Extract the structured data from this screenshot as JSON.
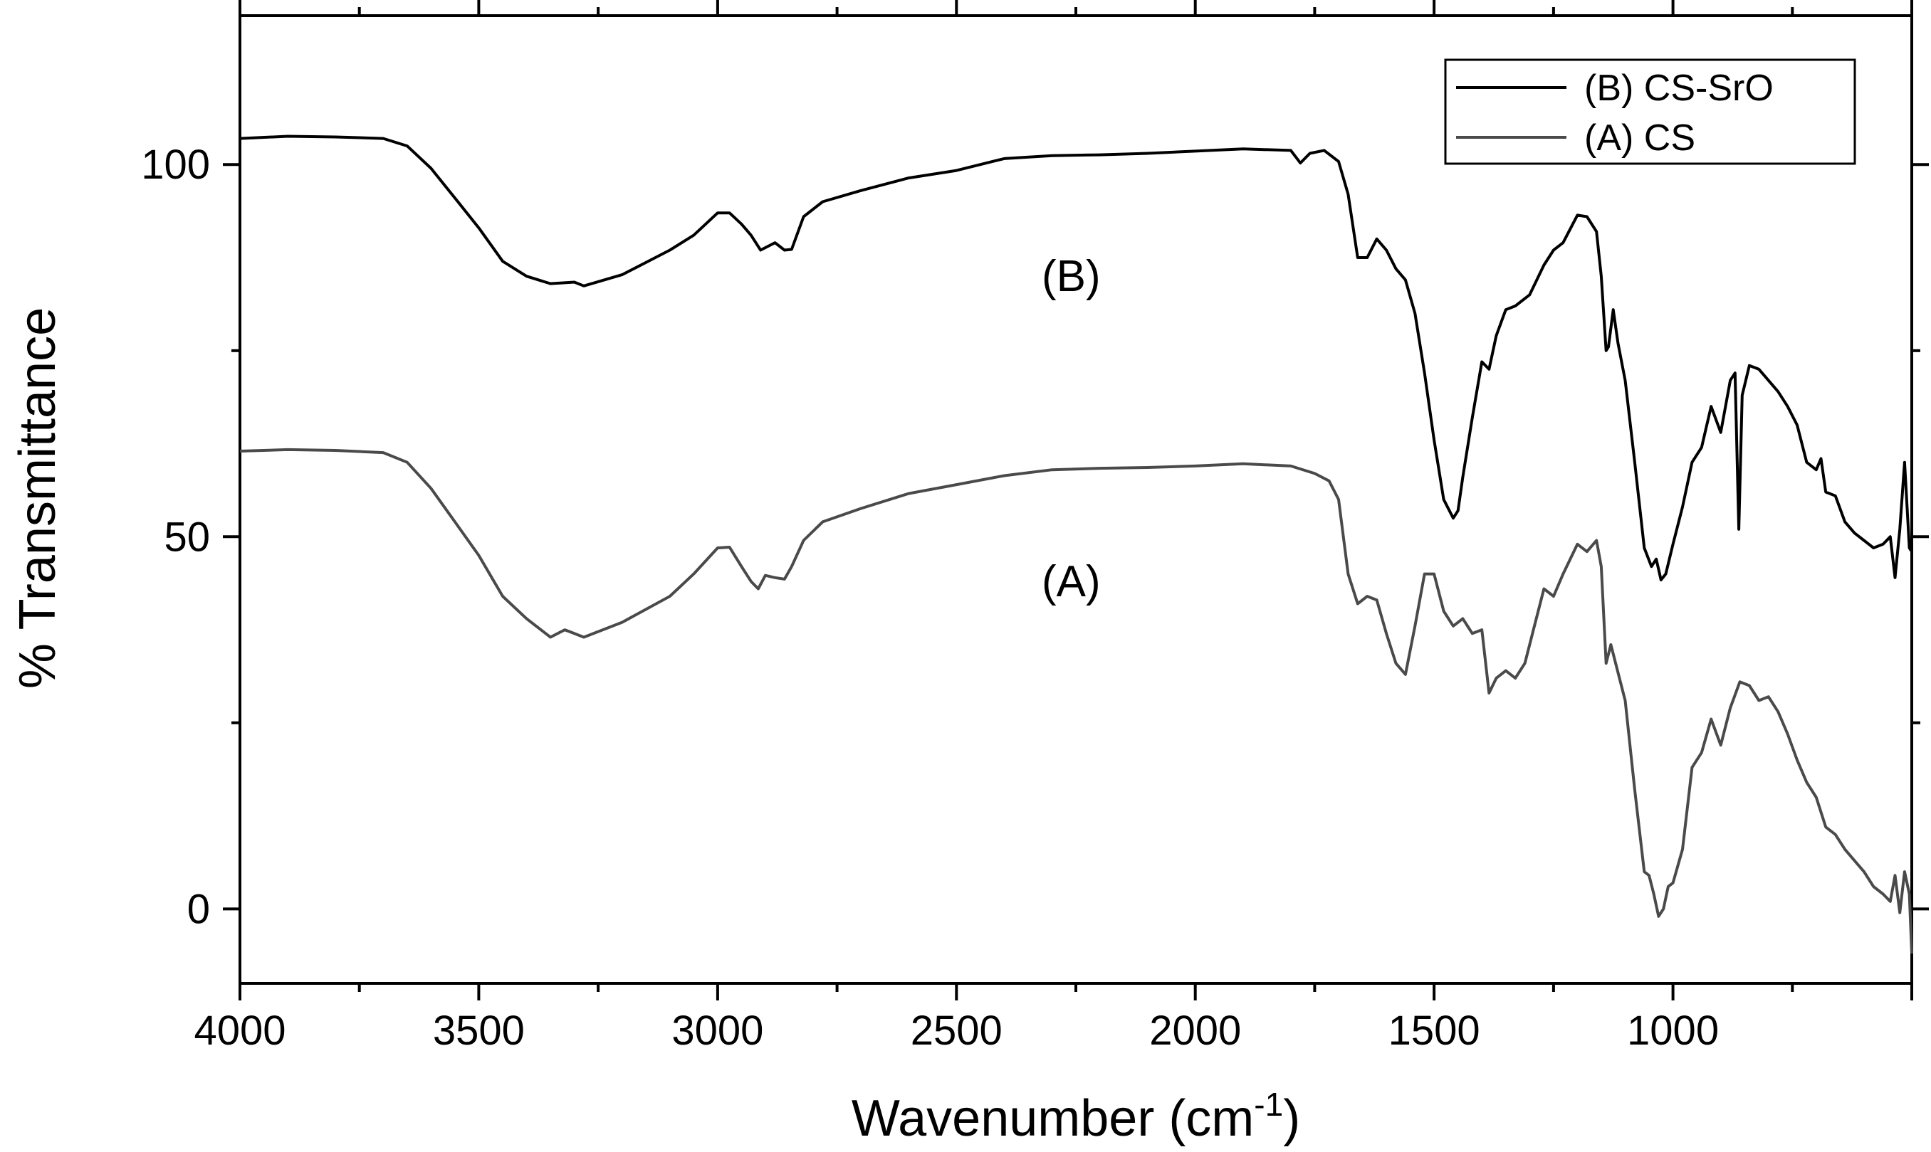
{
  "chart_data": {
    "type": "line",
    "title": "",
    "xlabel": "Wavenumber (cm",
    "xlabel_sup": "-1",
    "xlabel_close": ")",
    "ylabel": "% Transmittance",
    "xlim": [
      4000,
      500
    ],
    "ylim": [
      -10,
      120
    ],
    "x_reversed": true,
    "grid": false,
    "legend_position": "top-right",
    "x_ticks": [
      4000,
      3500,
      3000,
      2500,
      2000,
      1500,
      1000
    ],
    "x_tick_labels": [
      "4000",
      "3500",
      "3000",
      "2500",
      "2000",
      "1500",
      "1000"
    ],
    "y_ticks": [
      0,
      50,
      100
    ],
    "y_tick_labels": [
      "0",
      "50",
      "100"
    ],
    "annotations": [
      {
        "text": "(B)",
        "x": 2260,
        "y": 83
      },
      {
        "text": "(A)",
        "x": 2260,
        "y": 42
      }
    ],
    "series": [
      {
        "name": "(B) CS-SrO",
        "color": "#000000",
        "x": [
          4000,
          3900,
          3800,
          3700,
          3650,
          3600,
          3550,
          3500,
          3450,
          3400,
          3350,
          3300,
          3280,
          3200,
          3100,
          3050,
          3000,
          2975,
          2950,
          2930,
          2910,
          2880,
          2860,
          2845,
          2820,
          2780,
          2700,
          2600,
          2500,
          2400,
          2300,
          2200,
          2100,
          2000,
          1900,
          1800,
          1780,
          1760,
          1730,
          1700,
          1680,
          1660,
          1640,
          1620,
          1600,
          1580,
          1560,
          1540,
          1520,
          1500,
          1480,
          1460,
          1450,
          1440,
          1420,
          1400,
          1385,
          1370,
          1350,
          1330,
          1300,
          1270,
          1250,
          1230,
          1200,
          1180,
          1160,
          1150,
          1140,
          1135,
          1125,
          1115,
          1100,
          1080,
          1060,
          1045,
          1035,
          1025,
          1015,
          1000,
          980,
          960,
          940,
          920,
          900,
          880,
          870,
          862,
          855,
          840,
          820,
          800,
          780,
          760,
          740,
          720,
          700,
          690,
          680,
          660,
          640,
          620,
          600,
          580,
          560,
          545,
          535,
          525,
          515,
          505,
          500
        ],
        "y": [
          103.5,
          103.8,
          103.7,
          103.5,
          102.5,
          99.5,
          95.5,
          91.5,
          87,
          85,
          84,
          84.2,
          83.7,
          85.2,
          88.5,
          90.5,
          93.5,
          93.5,
          92,
          90.5,
          88.5,
          89.5,
          88.5,
          88.6,
          93,
          95,
          96.5,
          98.2,
          99.2,
          100.8,
          101.2,
          101.3,
          101.5,
          101.8,
          102.1,
          101.9,
          100.2,
          101.5,
          101.9,
          100.4,
          96,
          87.5,
          87.5,
          90,
          88.5,
          86,
          84.5,
          80,
          72,
          63,
          55,
          52.5,
          53.5,
          58,
          66,
          73.5,
          72.5,
          77,
          80.5,
          81,
          82.5,
          86.5,
          88.5,
          89.5,
          93.2,
          93,
          91,
          85,
          75,
          75.5,
          80.5,
          76,
          71,
          60,
          48.5,
          46,
          47,
          44.2,
          45,
          49,
          54,
          60,
          62,
          67.5,
          64,
          71,
          72,
          51,
          69,
          73,
          72.5,
          71,
          69.5,
          67.5,
          65,
          60,
          59,
          60.5,
          56,
          55.5,
          52,
          50.5,
          49.5,
          48.5,
          49,
          50,
          44.5,
          51,
          60,
          48.5,
          48
        ]
      },
      {
        "name": "(A) CS",
        "color": "#4a4a4a",
        "x": [
          4000,
          3900,
          3800,
          3700,
          3650,
          3600,
          3550,
          3500,
          3450,
          3400,
          3350,
          3320,
          3300,
          3280,
          3200,
          3100,
          3050,
          3000,
          2975,
          2950,
          2930,
          2915,
          2900,
          2880,
          2860,
          2845,
          2820,
          2780,
          2700,
          2600,
          2500,
          2400,
          2300,
          2200,
          2100,
          2000,
          1900,
          1800,
          1750,
          1720,
          1700,
          1680,
          1660,
          1640,
          1620,
          1600,
          1580,
          1560,
          1540,
          1520,
          1500,
          1480,
          1460,
          1440,
          1420,
          1400,
          1385,
          1370,
          1350,
          1330,
          1310,
          1290,
          1270,
          1250,
          1230,
          1200,
          1180,
          1160,
          1150,
          1140,
          1130,
          1120,
          1100,
          1080,
          1060,
          1050,
          1040,
          1030,
          1020,
          1010,
          1000,
          980,
          960,
          940,
          920,
          900,
          880,
          860,
          840,
          820,
          800,
          780,
          760,
          740,
          720,
          700,
          690,
          680,
          660,
          640,
          620,
          600,
          580,
          560,
          545,
          535,
          525,
          515,
          505,
          500
        ],
        "y": [
          61.5,
          61.7,
          61.6,
          61.3,
          60,
          56.5,
          52,
          47.5,
          42,
          39,
          36.5,
          37.5,
          37,
          36.5,
          38.5,
          42,
          45,
          48.5,
          48.6,
          46,
          44,
          43,
          44.8,
          44.5,
          44.3,
          46,
          49.5,
          52,
          53.8,
          55.8,
          57,
          58.2,
          59,
          59.2,
          59.3,
          59.5,
          59.8,
          59.5,
          58.5,
          57.5,
          55,
          45,
          41,
          42,
          41.5,
          37,
          33,
          31.5,
          38,
          45,
          45,
          40,
          38,
          39,
          37,
          37.5,
          29,
          31,
          32,
          31,
          33,
          38,
          43,
          42,
          45,
          49,
          48,
          49.5,
          46,
          33,
          35.5,
          33,
          28,
          16,
          5,
          4.5,
          2,
          -1,
          0,
          3,
          3.5,
          8,
          19,
          21,
          25.5,
          22,
          27,
          30.5,
          30,
          28,
          28.5,
          26.5,
          23.5,
          20,
          17,
          15,
          13,
          11,
          10,
          8,
          6.5,
          5,
          3,
          2,
          1,
          4.5,
          -0.5,
          5,
          2,
          -6
        ]
      }
    ]
  }
}
